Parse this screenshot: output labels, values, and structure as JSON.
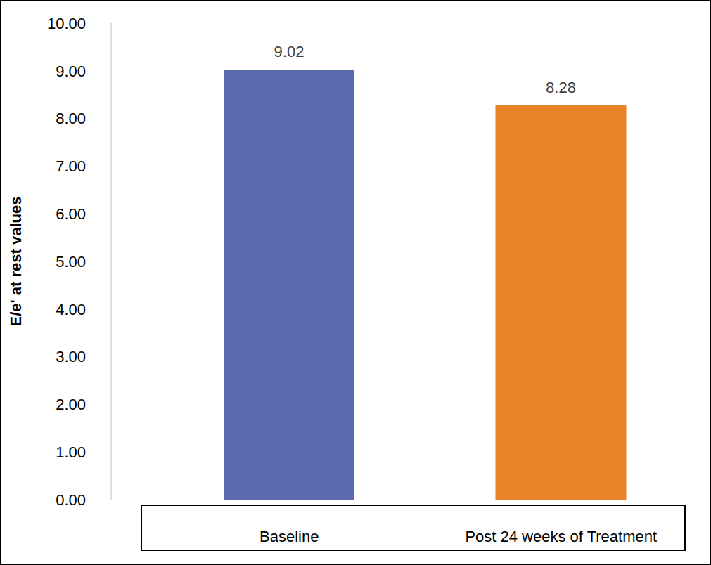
{
  "chart_data": {
    "type": "bar",
    "categories": [
      "Baseline",
      "Post 24 weeks of Treatment"
    ],
    "values": [
      9.02,
      8.28
    ],
    "colors": [
      "#5b6aad",
      "#e8832a"
    ],
    "y_label": "E/e' at rest values",
    "ylim": [
      0,
      10
    ],
    "yticks": [
      {
        "value": 0,
        "label": "0.00"
      },
      {
        "value": 1,
        "label": "1.00"
      },
      {
        "value": 2,
        "label": "2.00"
      },
      {
        "value": 3,
        "label": "3.00"
      },
      {
        "value": 4,
        "label": "4.00"
      },
      {
        "value": 5,
        "label": "5.00"
      },
      {
        "value": 6,
        "label": "6.00"
      },
      {
        "value": 7,
        "label": "7.00"
      },
      {
        "value": 8,
        "label": "8.00"
      },
      {
        "value": 9,
        "label": "9.00"
      },
      {
        "value": 10,
        "label": "10.00"
      }
    ],
    "grid": false,
    "data_labels": true
  }
}
